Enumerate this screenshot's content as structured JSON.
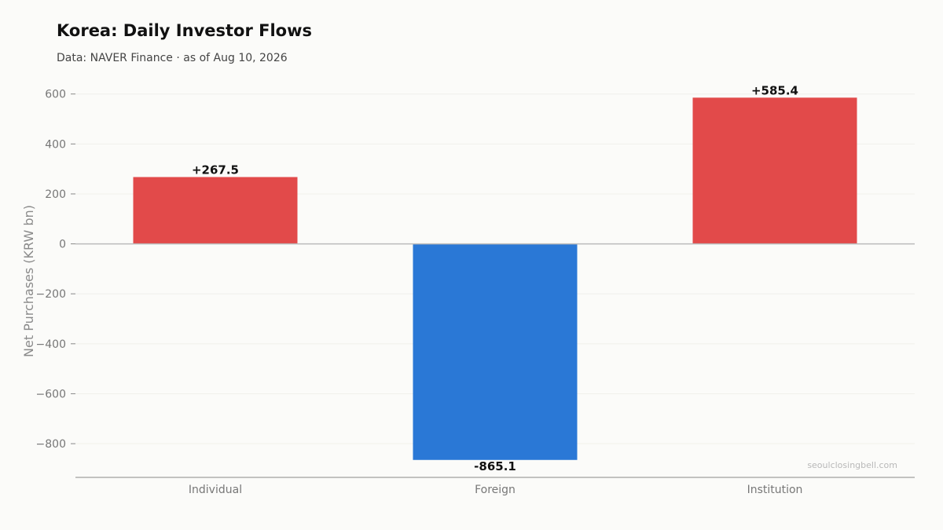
{
  "header": {
    "title": "Korea: Daily Investor Flows",
    "subtitle": "Data: NAVER Finance · as of Aug 10, 2026"
  },
  "watermark": "seoulclosingbell.com",
  "colors": {
    "positive": "#e24a4a",
    "negative": "#2a78d6",
    "grid": "#f0f0ec",
    "zero_line": "#bbbbbb",
    "axis": "#888888"
  },
  "chart_data": {
    "type": "bar",
    "title": "Korea: Daily Investor Flows",
    "subtitle": "Data: NAVER Finance · as of Aug 10, 2026",
    "xlabel": "",
    "ylabel": "Net Purchases (KRW bn)",
    "categories": [
      "Individual",
      "Foreign",
      "Institution"
    ],
    "values": [
      267.5,
      -865.1,
      585.4
    ],
    "data_labels": [
      "+267.5",
      "-865.1",
      "+585.4"
    ],
    "yticks": [
      600,
      400,
      200,
      0,
      -200,
      -400,
      -600,
      -800
    ],
    "ytick_labels": [
      "600",
      "400",
      "200",
      "0",
      "−200",
      "−400",
      "−600",
      "−800"
    ],
    "ylim": [
      -935,
      640
    ],
    "grid": true,
    "legend": "none"
  }
}
